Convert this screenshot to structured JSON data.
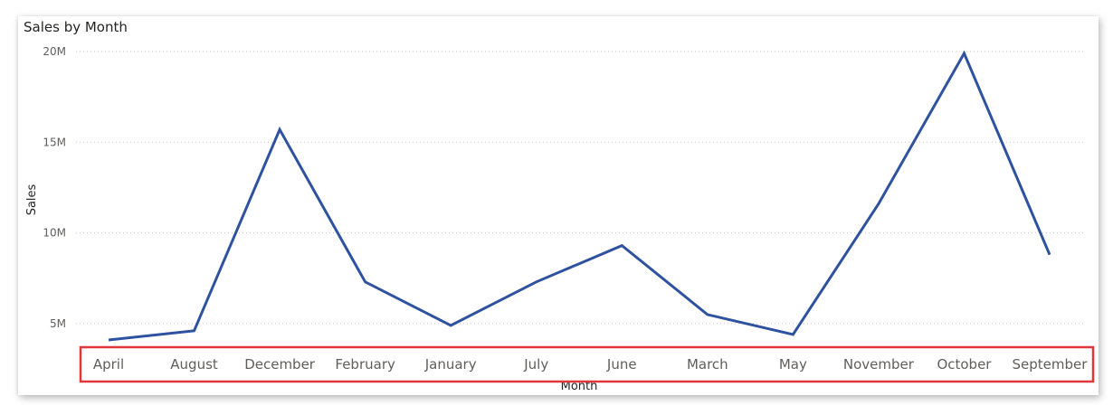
{
  "chart_data": {
    "type": "line",
    "title": "Sales by Month",
    "xlabel": "Month",
    "ylabel": "Sales",
    "categories": [
      "April",
      "August",
      "December",
      "February",
      "January",
      "July",
      "June",
      "March",
      "May",
      "November",
      "October",
      "September"
    ],
    "series": [
      {
        "values": [
          4100000,
          4600000,
          15700000,
          7300000,
          4900000,
          7300000,
          9300000,
          5500000,
          4400000,
          11600000,
          19900000,
          8800000
        ]
      }
    ],
    "y_ticks": [
      {
        "value": 5000000,
        "label": "5M"
      },
      {
        "value": 10000000,
        "label": "10M"
      },
      {
        "value": 15000000,
        "label": "15M"
      },
      {
        "value": 20000000,
        "label": "20M"
      }
    ],
    "ylim": [
      3400000,
      20000000
    ],
    "grid": true,
    "line_color": "#2f52a0",
    "highlight_color": "#e0373d"
  }
}
